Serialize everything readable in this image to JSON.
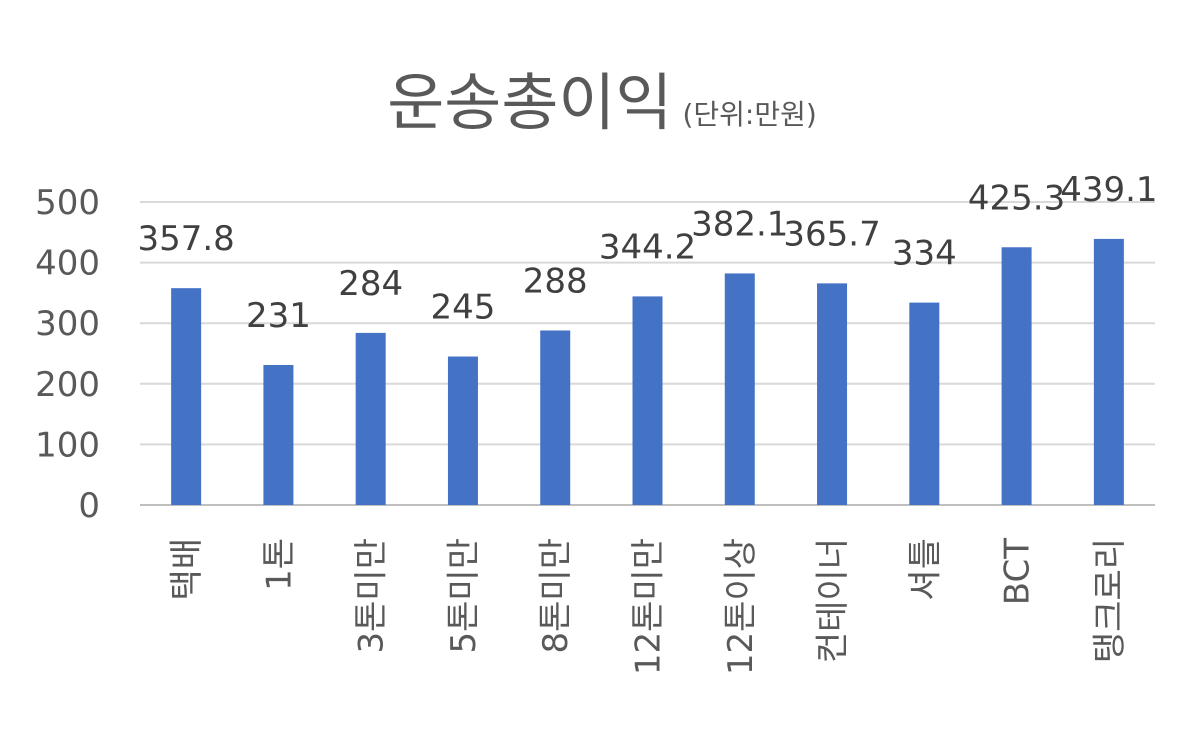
{
  "chart_data": {
    "type": "bar",
    "title": "운송총이익",
    "subtitle": "(단위:만원)",
    "categories": [
      "택배",
      "1톤",
      "3톤미만",
      "5톤미만",
      "8톤미만",
      "12톤미만",
      "12톤이상",
      "컨테이너",
      "셔틀",
      "BCT",
      "탱크로리"
    ],
    "values": [
      357.8,
      231,
      284,
      245,
      288,
      344.2,
      382.1,
      365.7,
      334,
      425.3,
      439.1
    ],
    "data_labels": [
      "357.8",
      "231",
      "284",
      "245",
      "288",
      "344.2",
      "382.1",
      "365.7",
      "334",
      "425.3",
      "439.1"
    ],
    "ylim": [
      0,
      500
    ],
    "yticks": [
      0,
      100,
      200,
      300,
      400,
      500
    ],
    "xlabel": "",
    "ylabel": "",
    "grid": true,
    "bar_color": "#4472C4",
    "grid_color": "#D9D9D9"
  }
}
